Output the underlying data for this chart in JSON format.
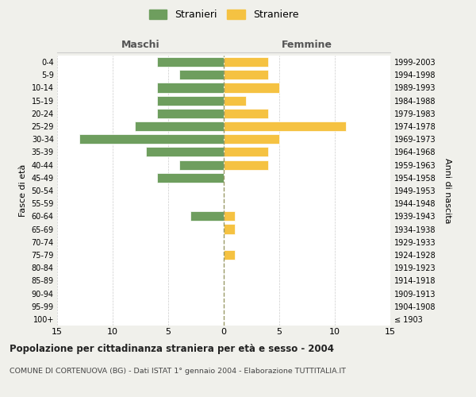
{
  "age_groups": [
    "100+",
    "95-99",
    "90-94",
    "85-89",
    "80-84",
    "75-79",
    "70-74",
    "65-69",
    "60-64",
    "55-59",
    "50-54",
    "45-49",
    "40-44",
    "35-39",
    "30-34",
    "25-29",
    "20-24",
    "15-19",
    "10-14",
    "5-9",
    "0-4"
  ],
  "birth_years": [
    "≤ 1903",
    "1904-1908",
    "1909-1913",
    "1914-1918",
    "1919-1923",
    "1924-1928",
    "1929-1933",
    "1934-1938",
    "1939-1943",
    "1944-1948",
    "1949-1953",
    "1954-1958",
    "1959-1963",
    "1964-1968",
    "1969-1973",
    "1974-1978",
    "1979-1983",
    "1984-1988",
    "1989-1993",
    "1994-1998",
    "1999-2003"
  ],
  "maschi": [
    0,
    0,
    0,
    0,
    0,
    0,
    0,
    0,
    3,
    0,
    0,
    6,
    4,
    7,
    13,
    8,
    6,
    6,
    6,
    4,
    6
  ],
  "femmine": [
    0,
    0,
    0,
    0,
    0,
    1,
    0,
    1,
    1,
    0,
    0,
    0,
    4,
    4,
    5,
    11,
    4,
    2,
    5,
    4,
    4
  ],
  "color_maschi": "#6e9e5e",
  "color_femmine": "#f5c242",
  "xlim": 15,
  "title": "Popolazione per cittadinanza straniera per età e sesso - 2004",
  "subtitle": "COMUNE DI CORTENUOVA (BG) - Dati ISTAT 1° gennaio 2004 - Elaborazione TUTTITALIA.IT",
  "ylabel_left": "Fasce di età",
  "ylabel_right": "Anni di nascita",
  "label_maschi": "Stranieri",
  "label_femmine": "Straniere",
  "header_maschi": "Maschi",
  "header_femmine": "Femmine",
  "background_color": "#f0f0eb",
  "plot_background": "#ffffff",
  "grid_color": "#cccccc",
  "center_line_color": "#999966"
}
